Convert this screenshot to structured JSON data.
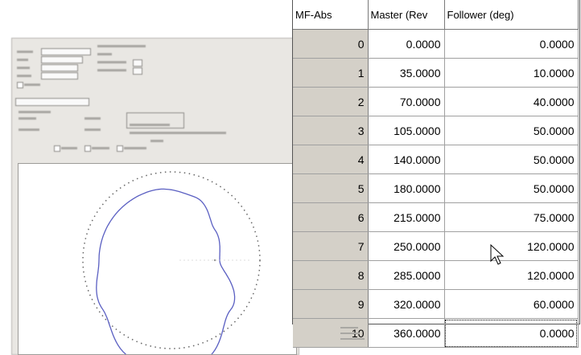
{
  "table": {
    "headers": [
      "MF-Abs",
      "Master (Rev",
      "Follower (deg)"
    ],
    "rows": [
      {
        "index": "0",
        "master": "0.0000",
        "follower": "0.0000"
      },
      {
        "index": "1",
        "master": "35.0000",
        "follower": "10.0000"
      },
      {
        "index": "2",
        "master": "70.0000",
        "follower": "40.0000"
      },
      {
        "index": "3",
        "master": "105.0000",
        "follower": "50.0000"
      },
      {
        "index": "4",
        "master": "140.0000",
        "follower": "50.0000"
      },
      {
        "index": "5",
        "master": "180.0000",
        "follower": "50.0000"
      },
      {
        "index": "6",
        "master": "215.0000",
        "follower": "75.0000"
      },
      {
        "index": "7",
        "master": "250.0000",
        "follower": "120.0000"
      },
      {
        "index": "8",
        "master": "285.0000",
        "follower": "120.0000"
      },
      {
        "index": "9",
        "master": "320.0000",
        "follower": "60.0000"
      },
      {
        "index": "10",
        "master": "360.0000",
        "follower": "0.0000"
      }
    ]
  },
  "colors": {
    "cam_profile": "#5a5fc2",
    "index_column": "#d4d0c8",
    "window_bg": "#e9e7e3"
  }
}
